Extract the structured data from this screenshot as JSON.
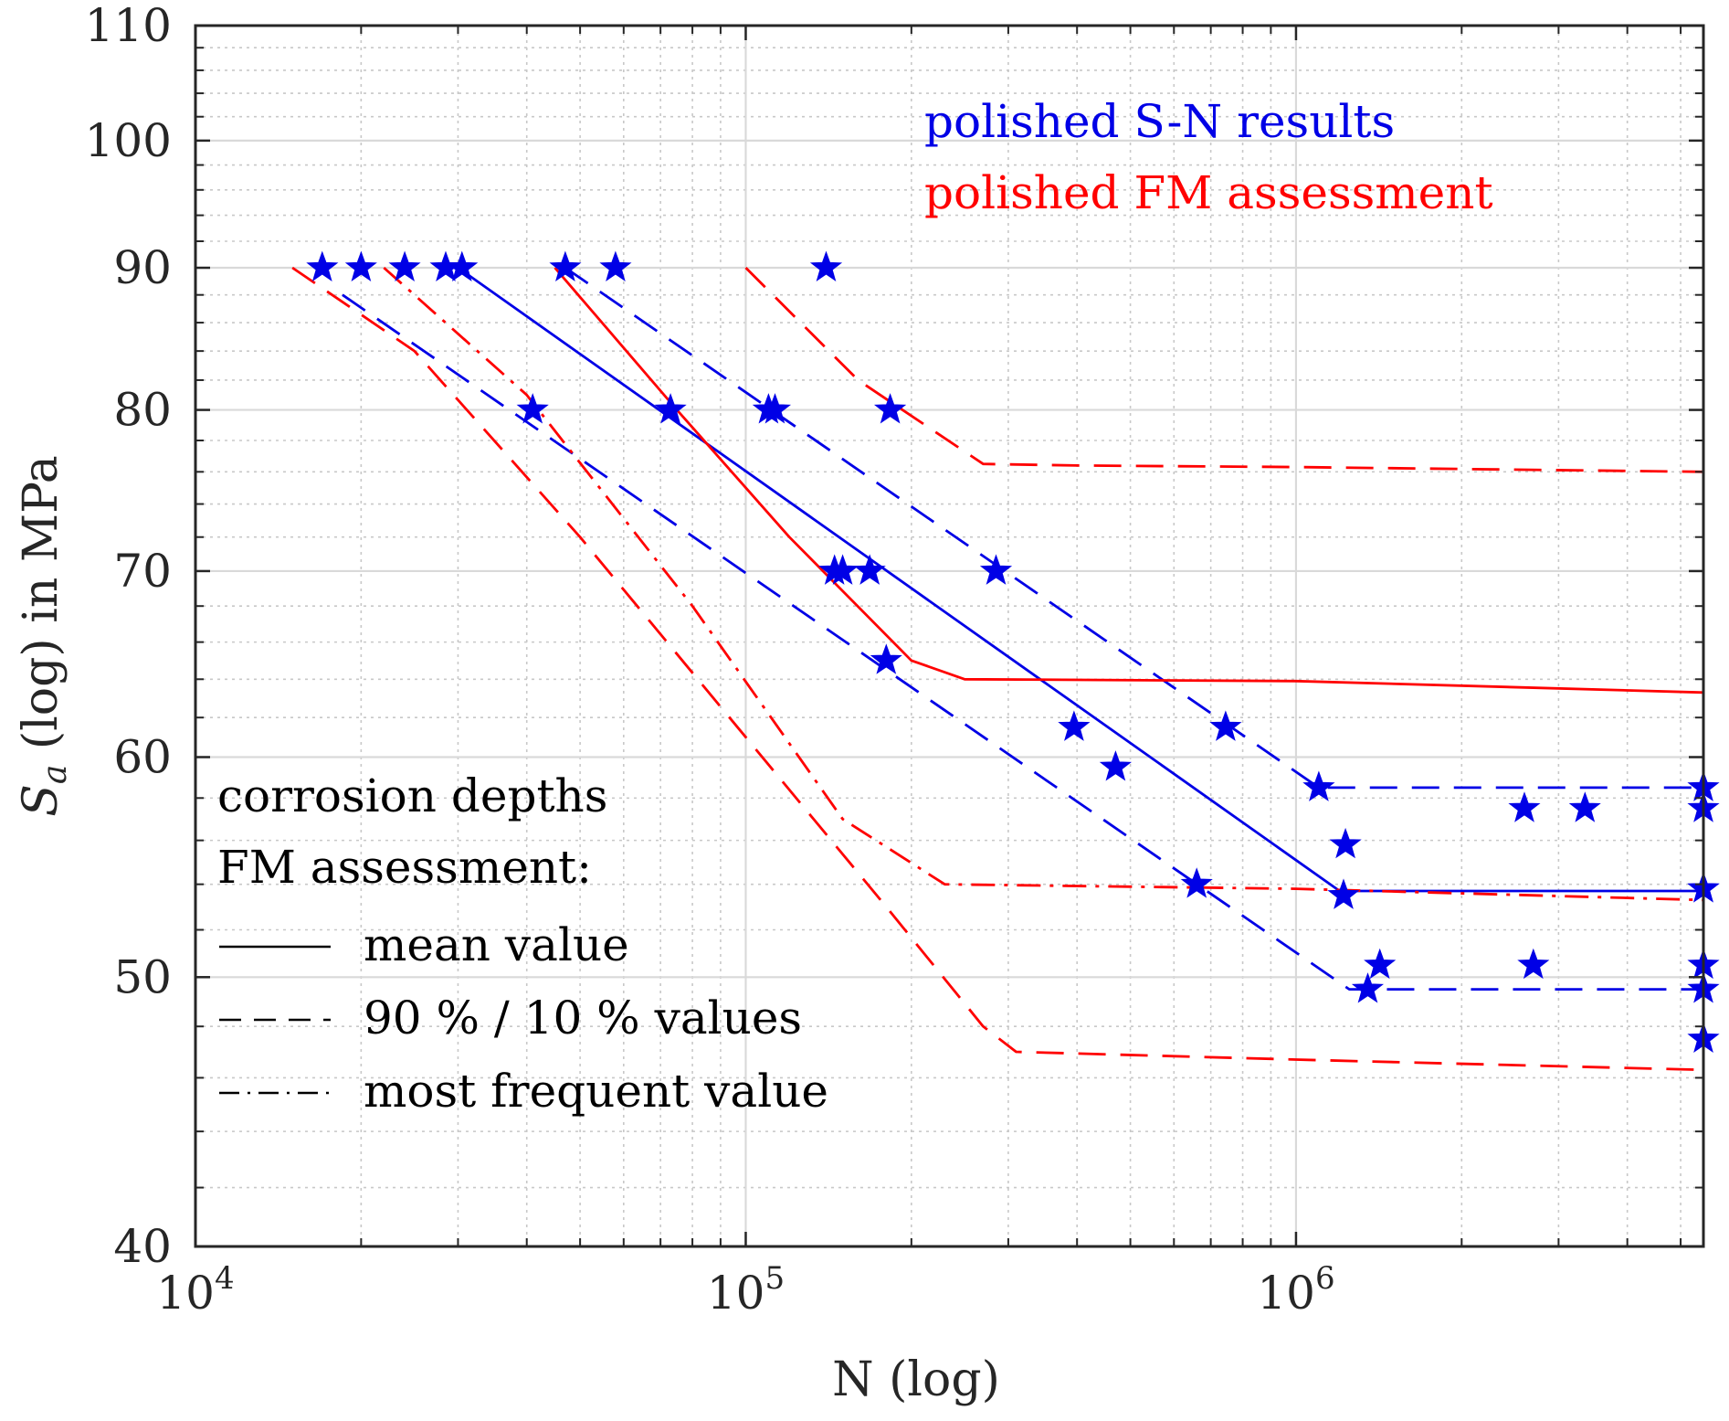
{
  "chart_data": {
    "type": "scatter",
    "title": "",
    "xlabel": "N (log)",
    "ylabel_symbol": "S",
    "ylabel_subscript": "a",
    "ylabel_rest": " (log) in MPa",
    "xscale": "log",
    "yscale": "log",
    "xlim": [
      10000,
      5500000
    ],
    "ylim": [
      40,
      110
    ],
    "grid": true,
    "x_ticks": [
      {
        "value": 10000,
        "base": "10",
        "exp": "4"
      },
      {
        "value": 100000,
        "base": "10",
        "exp": "5"
      },
      {
        "value": 1000000,
        "base": "10",
        "exp": "6"
      }
    ],
    "y_ticks": [
      {
        "value": 40,
        "label": "40"
      },
      {
        "value": 50,
        "label": "50"
      },
      {
        "value": 60,
        "label": "60"
      },
      {
        "value": 70,
        "label": "70"
      },
      {
        "value": 80,
        "label": "80"
      },
      {
        "value": 90,
        "label": "90"
      },
      {
        "value": 100,
        "label": "100"
      },
      {
        "value": 110,
        "label": "110"
      }
    ],
    "colors": {
      "sn": "#0000e6",
      "fm": "#ff0000",
      "axis": "#262626",
      "grid": "#d9d9d9"
    },
    "annotations": {
      "sn_label": "polished S-N results",
      "fm_label": "polished FM assessment"
    },
    "legend": {
      "title_line1": "corrosion depths",
      "title_line2": "FM assessment:",
      "placement": "bottom-left",
      "entries": [
        {
          "label": "mean value",
          "style": "solid"
        },
        {
          "label": "90 % / 10 % values",
          "style": "dashed"
        },
        {
          "label": "most frequent value",
          "style": "dashdot"
        }
      ]
    },
    "series": [
      {
        "name": "polished S-N results",
        "kind": "points",
        "color": "#0000e6",
        "x": [
          17000,
          20000,
          24000,
          28500,
          30500,
          47000,
          58000,
          140000,
          41000,
          73000,
          110000,
          113000,
          183000,
          145000,
          150000,
          168000,
          180000,
          285000,
          395000,
          470000,
          660000,
          745000,
          1100000,
          1230000,
          1220000,
          1420000,
          1350000,
          2600000,
          2700000,
          3350000,
          5500000,
          5500000,
          5500000,
          5500000,
          5500000,
          5500000,
          5500000
        ],
        "y": [
          90,
          90,
          90,
          90,
          90,
          90,
          90,
          90,
          80,
          80,
          80,
          80,
          80,
          70,
          70,
          70,
          65,
          70,
          61.5,
          59.5,
          54,
          61.5,
          58.5,
          55.8,
          53.5,
          50.5,
          49.5,
          57.5,
          50.5,
          57.5,
          58.5,
          57.5,
          53.8,
          53.8,
          50.5,
          49.5,
          47.5
        ]
      },
      {
        "name": "S-N mean",
        "kind": "line",
        "style": "solid",
        "color": "#0000e6",
        "x": [
          30000,
          1200000,
          5500000
        ],
        "y": [
          90,
          53.7,
          53.7
        ]
      },
      {
        "name": "S-N 90 %",
        "kind": "line",
        "style": "dashed",
        "color": "#0000e6",
        "x": [
          47000,
          1100000,
          5500000
        ],
        "y": [
          90,
          58.5,
          58.5
        ]
      },
      {
        "name": "S-N 10 %",
        "kind": "line",
        "style": "dashed",
        "color": "#0000e6",
        "x": [
          18500,
          1250000,
          5500000
        ],
        "y": [
          88,
          49.5,
          49.5
        ]
      },
      {
        "name": "FM mean value",
        "kind": "line",
        "style": "solid",
        "color": "#ff0000",
        "x": [
          45000,
          75000,
          120000,
          200000,
          250000,
          1000000,
          5500000
        ],
        "y": [
          90,
          80,
          72,
          65,
          64,
          63.9,
          63.3
        ]
      },
      {
        "name": "FM 90 % value",
        "kind": "line",
        "style": "dashed",
        "color": "#ff0000",
        "x": [
          100000,
          160000,
          270000,
          400000,
          1000000,
          5500000
        ],
        "y": [
          90,
          82,
          76.5,
          76.4,
          76.3,
          76
        ]
      },
      {
        "name": "FM 10 % value",
        "kind": "line",
        "style": "dashed",
        "color": "#ff0000",
        "x": [
          15000,
          25000,
          50000,
          100000,
          180000,
          270000,
          310000,
          1000000,
          5500000
        ],
        "y": [
          90,
          84,
          72,
          61,
          53,
          48,
          47,
          46.7,
          46.3
        ]
      },
      {
        "name": "FM most frequent value",
        "kind": "line",
        "style": "dashdot",
        "color": "#ff0000",
        "x": [
          22000,
          40000,
          80000,
          150000,
          230000,
          1000000,
          5500000
        ],
        "y": [
          90,
          81,
          68,
          57,
          54,
          53.8,
          53.3
        ]
      },
      {
        "name": "FM limit",
        "kind": "line",
        "style": "solid",
        "color": "#ff0000",
        "x": [
          5500000,
          5500000
        ],
        "y": [
          40,
          76
        ]
      }
    ]
  }
}
